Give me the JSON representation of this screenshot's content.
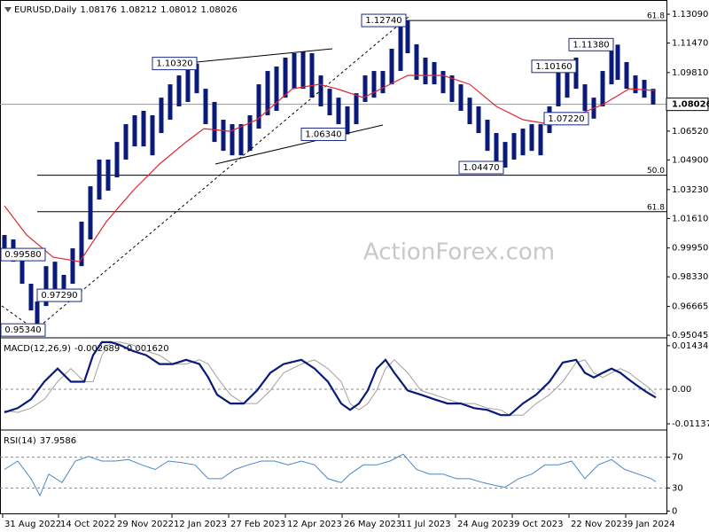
{
  "chart_data": [
    {
      "type": "hilo",
      "symbol": "EURUSD,Daily",
      "ohlc": [
        1.08176,
        1.08212,
        1.08012,
        1.08026
      ],
      "color": "#0a1a7a",
      "watermark": "ActionForex.com",
      "x": [
        2.5,
        7.5,
        12.5,
        17.5,
        21,
        26,
        31,
        36,
        41,
        46,
        51,
        56,
        61,
        66,
        71,
        76,
        81,
        86,
        91,
        96,
        101,
        106,
        111,
        116,
        121,
        126,
        131,
        136,
        141,
        146,
        151,
        156,
        161,
        166,
        171,
        176,
        181,
        186,
        191,
        196,
        201,
        206,
        211,
        216,
        221,
        226,
        230,
        235,
        240,
        245,
        250,
        255,
        260,
        265,
        270,
        275,
        280,
        285,
        290,
        295,
        300,
        305,
        310,
        315,
        320,
        325,
        330,
        335,
        340,
        345,
        348.5,
        353.5,
        358.5,
        363.5,
        368.5
      ],
      "high": [
        1.0068,
        1.0043,
        0.9943,
        0.9794,
        0.9694,
        0.9893,
        0.9918,
        0.9844,
        0.9993,
        1.0143,
        1.0342,
        1.0492,
        1.0492,
        1.0591,
        1.0691,
        1.0741,
        1.0766,
        1.0741,
        1.084,
        1.0915,
        1.0965,
        1.1015,
        1.1032,
        1.089,
        1.0816,
        1.0716,
        1.0691,
        1.0691,
        1.0741,
        1.0915,
        1.099,
        1.1015,
        1.1065,
        1.109,
        1.11,
        1.109,
        1.0965,
        1.089,
        1.084,
        1.0791,
        1.0865,
        1.0965,
        1.099,
        1.099,
        1.1115,
        1.1239,
        1.1274,
        1.114,
        1.1065,
        1.104,
        1.099,
        1.0965,
        1.0915,
        1.084,
        1.0791,
        1.0716,
        1.0641,
        1.0591,
        1.0641,
        1.0666,
        1.0691,
        1.0691,
        1.0791,
        1.1015,
        1.104,
        1.1065,
        1.0915,
        1.084,
        1.099,
        1.114,
        1.1138,
        1.104,
        1.0965,
        1.094,
        1.089
      ],
      "low": [
        0.9943,
        0.9918,
        0.9794,
        0.9644,
        0.9534,
        0.9669,
        0.9694,
        0.9729,
        0.9794,
        0.9893,
        1.0043,
        1.0267,
        1.0317,
        1.0392,
        1.0492,
        1.0566,
        1.0566,
        1.0516,
        1.0641,
        1.0716,
        1.0791,
        1.0816,
        1.0865,
        1.0691,
        1.0591,
        1.0541,
        1.0516,
        1.0516,
        1.0541,
        1.0666,
        1.0741,
        1.0766,
        1.084,
        1.089,
        1.089,
        1.084,
        1.0791,
        1.0741,
        1.0691,
        1.0634,
        1.0691,
        1.0816,
        1.084,
        1.0865,
        1.0915,
        1.099,
        1.109,
        1.094,
        1.0915,
        1.0915,
        1.0865,
        1.0816,
        1.0766,
        1.0691,
        1.0641,
        1.0541,
        1.0467,
        1.0447,
        1.0492,
        1.0516,
        1.0541,
        1.0516,
        1.0641,
        1.0791,
        1.084,
        1.089,
        1.0766,
        1.0722,
        1.0791,
        1.0915,
        1.094,
        1.089,
        1.0865,
        1.084,
        1.0801
      ],
      "ma": {
        "color": "#e0262e",
        "x": [
          2.5,
          15,
          30,
          45,
          60,
          75,
          90,
          105,
          115,
          130,
          145,
          165,
          180,
          190,
          205,
          220,
          230,
          250,
          265,
          280,
          295,
          310,
          325,
          340,
          355,
          370
        ],
        "values": [
          1.0232,
          1.0068,
          0.9943,
          0.9918,
          1.0143,
          1.0317,
          1.0467,
          1.0591,
          1.0666,
          1.0651,
          1.0716,
          1.089,
          1.0915,
          1.089,
          1.084,
          1.0915,
          1.0965,
          1.0965,
          1.0915,
          1.0791,
          1.0716,
          1.0691,
          1.0741,
          1.0801,
          1.089,
          1.088
        ]
      },
      "current": 1.08026,
      "levels": [
        {
          "label": "61.8",
          "value": 1.1274,
          "x": 204
        },
        {
          "label": "50.0",
          "value": 1.0404,
          "x": 21
        },
        {
          "label": "61.8",
          "value": 1.0199,
          "x": 21
        }
      ],
      "annotations": [
        {
          "value": 0.9958,
          "label": "0.99580",
          "x": 21
        },
        {
          "value": 0.9534,
          "label": "0.95340",
          "x": 20
        },
        {
          "value": 0.9729,
          "label": "0.97290",
          "x": 46
        },
        {
          "value": 1.1032,
          "label": "1.10320",
          "x": 111
        },
        {
          "value": 1.0634,
          "label": "1.06340",
          "x": 195
        },
        {
          "value": 1.1274,
          "label": "1.12740",
          "x": 229
        },
        {
          "value": 1.0447,
          "label": "1.04470",
          "x": 284
        },
        {
          "value": 1.1016,
          "label": "1.10160",
          "x": 325
        },
        {
          "value": 1.1138,
          "label": "1.11380",
          "x": 346
        },
        {
          "value": 1.0722,
          "label": "1.07220",
          "x": 332
        }
      ],
      "xlim": [
        0,
        376
      ],
      "xticks": [
        {
          "value": 1.5,
          "label": "31 Aug 2022"
        },
        {
          "value": 33,
          "label": "14 Oct 2022"
        },
        {
          "value": 65,
          "label": "29 Nov 2022"
        },
        {
          "value": 97,
          "label": "12 Jan 2023"
        },
        {
          "value": 129,
          "label": "27 Feb 2023"
        },
        {
          "value": 161,
          "label": "12 Apr 2023"
        },
        {
          "value": 193,
          "label": "26 May 2023"
        },
        {
          "value": 225,
          "label": "11 Jul 2023"
        },
        {
          "value": 257,
          "label": "24 Aug 2023"
        },
        {
          "value": 289,
          "label": "9 Oct 2023"
        },
        {
          "value": 321,
          "label": "22 Nov 2023"
        },
        {
          "value": 353,
          "label": "9 Jan 2024"
        }
      ],
      "ylim": [
        0.9495,
        1.1379
      ],
      "yticks": [
        {
          "value": 1.1309,
          "label": "1.13090"
        },
        {
          "value": 1.1147,
          "label": "1.11470"
        },
        {
          "value": 1.0981,
          "label": "1.09810"
        },
        {
          "value": 1.0652,
          "label": "1.06520"
        },
        {
          "value": 1.049,
          "label": "1.04900"
        },
        {
          "value": 1.0323,
          "label": "1.03230"
        },
        {
          "value": 1.0161,
          "label": "1.01610"
        },
        {
          "value": 0.9995,
          "label": "0.99950"
        },
        {
          "value": 0.9833,
          "label": "0.98330"
        },
        0.96665,
        0.95045
      ]
    },
    {
      "type": "macd",
      "title": "MACD(12,26,9)",
      "last": [
        -0.002689,
        {
          "value": -0.00162,
          "label": "-0.001620"
        }
      ],
      "x": [
        2.5,
        10,
        17.5,
        25,
        32.5,
        40,
        47.5,
        52.5,
        57.5,
        62.5,
        67.5,
        75,
        82.5,
        90,
        97.5,
        105,
        112.5,
        117.5,
        122.5,
        130,
        137.5,
        145,
        152.5,
        160,
        170,
        177.5,
        185,
        192.5,
        197.5,
        202.5,
        207.5,
        212.5,
        217.5,
        222.5,
        230,
        237.5,
        245,
        252.5,
        260,
        267.5,
        275,
        282.5,
        287.5,
        295,
        302.5,
        310,
        317.5,
        325,
        330,
        335,
        340,
        345,
        350,
        355,
        360,
        365,
        370
      ],
      "series": [
        {
          "color": "#0a1a7a",
          "values": [
            -0.0076,
            -0.0062,
            -0.0033,
            0.0025,
            0.0068,
            0.0025,
            0.0025,
            0.0112,
            0.0155,
            0.0155,
            0.0146,
            0.0126,
            0.0112,
            0.0083,
            0.0083,
            0.0097,
            0.0083,
            0.0039,
            -0.0018,
            -0.0047,
            -0.0047,
            -0.0004,
            0.0054,
            0.0083,
            0.0097,
            0.0068,
            0.0025,
            -0.0047,
            -0.0068,
            -0.0047,
            -0.0004,
            0.0068,
            0.0097,
            0.0054,
            -0.0004,
            -0.0018,
            -0.0033,
            -0.0047,
            -0.0047,
            -0.0062,
            -0.0068,
            -0.0085,
            -0.0085,
            -0.0047,
            -0.0018,
            0.0025,
            0.0088,
            0.0097,
            0.0054,
            0.0039,
            0.0054,
            0.0068,
            0.0054,
            0.0031,
            0.001,
            -0.001,
            -0.0027
          ]
        },
        {
          "color": "#a0a0a0",
          "values": [
            -0.007,
            -0.0076,
            -0.0062,
            -0.0033,
            0.0025,
            0.0068,
            0.0025,
            0.0025,
            0.0112,
            0.0155,
            0.0155,
            0.0146,
            0.0126,
            0.0112,
            0.0083,
            0.0083,
            0.0097,
            0.0083,
            0.0039,
            -0.0018,
            -0.0047,
            -0.0047,
            -0.0004,
            0.0054,
            0.0083,
            0.0097,
            0.0068,
            0.0025,
            -0.0047,
            -0.0068,
            -0.0047,
            -0.0004,
            0.0068,
            0.0097,
            0.0054,
            -0.0004,
            -0.0018,
            -0.0033,
            -0.0047,
            -0.0047,
            -0.0062,
            -0.0068,
            -0.0085,
            -0.0085,
            -0.0047,
            -0.0018,
            0.0025,
            0.0088,
            0.0097,
            0.0054,
            0.0039,
            0.0054,
            0.0068,
            0.0054,
            0.0031,
            0.001,
            -0.0016
          ]
        }
      ],
      "xlim": [
        0,
        376
      ],
      "ylim": [
        -0.01283,
        0.01635
      ],
      "yticks": [
        0.014342,
        {
          "value": 0,
          "label": "0.00"
        },
        -0.011371
      ],
      "dashed": [
        0
      ]
    },
    {
      "type": "rsi",
      "title": "RSI(14)",
      "last": 37.9586,
      "x": [
        2.5,
        10,
        17.5,
        22.5,
        27.5,
        35,
        42.5,
        50,
        57.5,
        65,
        72.5,
        80,
        87.5,
        95,
        102.5,
        110,
        117.5,
        125,
        132.5,
        140,
        147.5,
        155,
        162.5,
        170,
        177.5,
        185,
        192.5,
        197.5,
        205,
        212.5,
        220,
        227.5,
        235,
        242.5,
        250,
        257.5,
        265,
        272.5,
        280,
        285,
        292.5,
        300,
        307.5,
        315,
        322.5,
        330,
        337.5,
        345,
        352.5,
        360,
        367.5,
        370
      ],
      "series": [
        {
          "color": "#4a86c8",
          "values": [
            54,
            65,
            42,
            20,
            48,
            37,
            65,
            71,
            65,
            65,
            67,
            60,
            54,
            65,
            63,
            60,
            42,
            42,
            54,
            60,
            65,
            65,
            60,
            65,
            60,
            42,
            37,
            48,
            60,
            60,
            65,
            74,
            54,
            48,
            48,
            42,
            42,
            37,
            33,
            31,
            42,
            48,
            60,
            60,
            65,
            42,
            60,
            67,
            54,
            48,
            42,
            38
          ]
        }
      ],
      "xlim": [
        0,
        376
      ],
      "ylim": [
        -3.1,
        103.1
      ],
      "yticks": [
        70,
        30,
        0
      ],
      "dashed": [
        70,
        30
      ]
    }
  ]
}
